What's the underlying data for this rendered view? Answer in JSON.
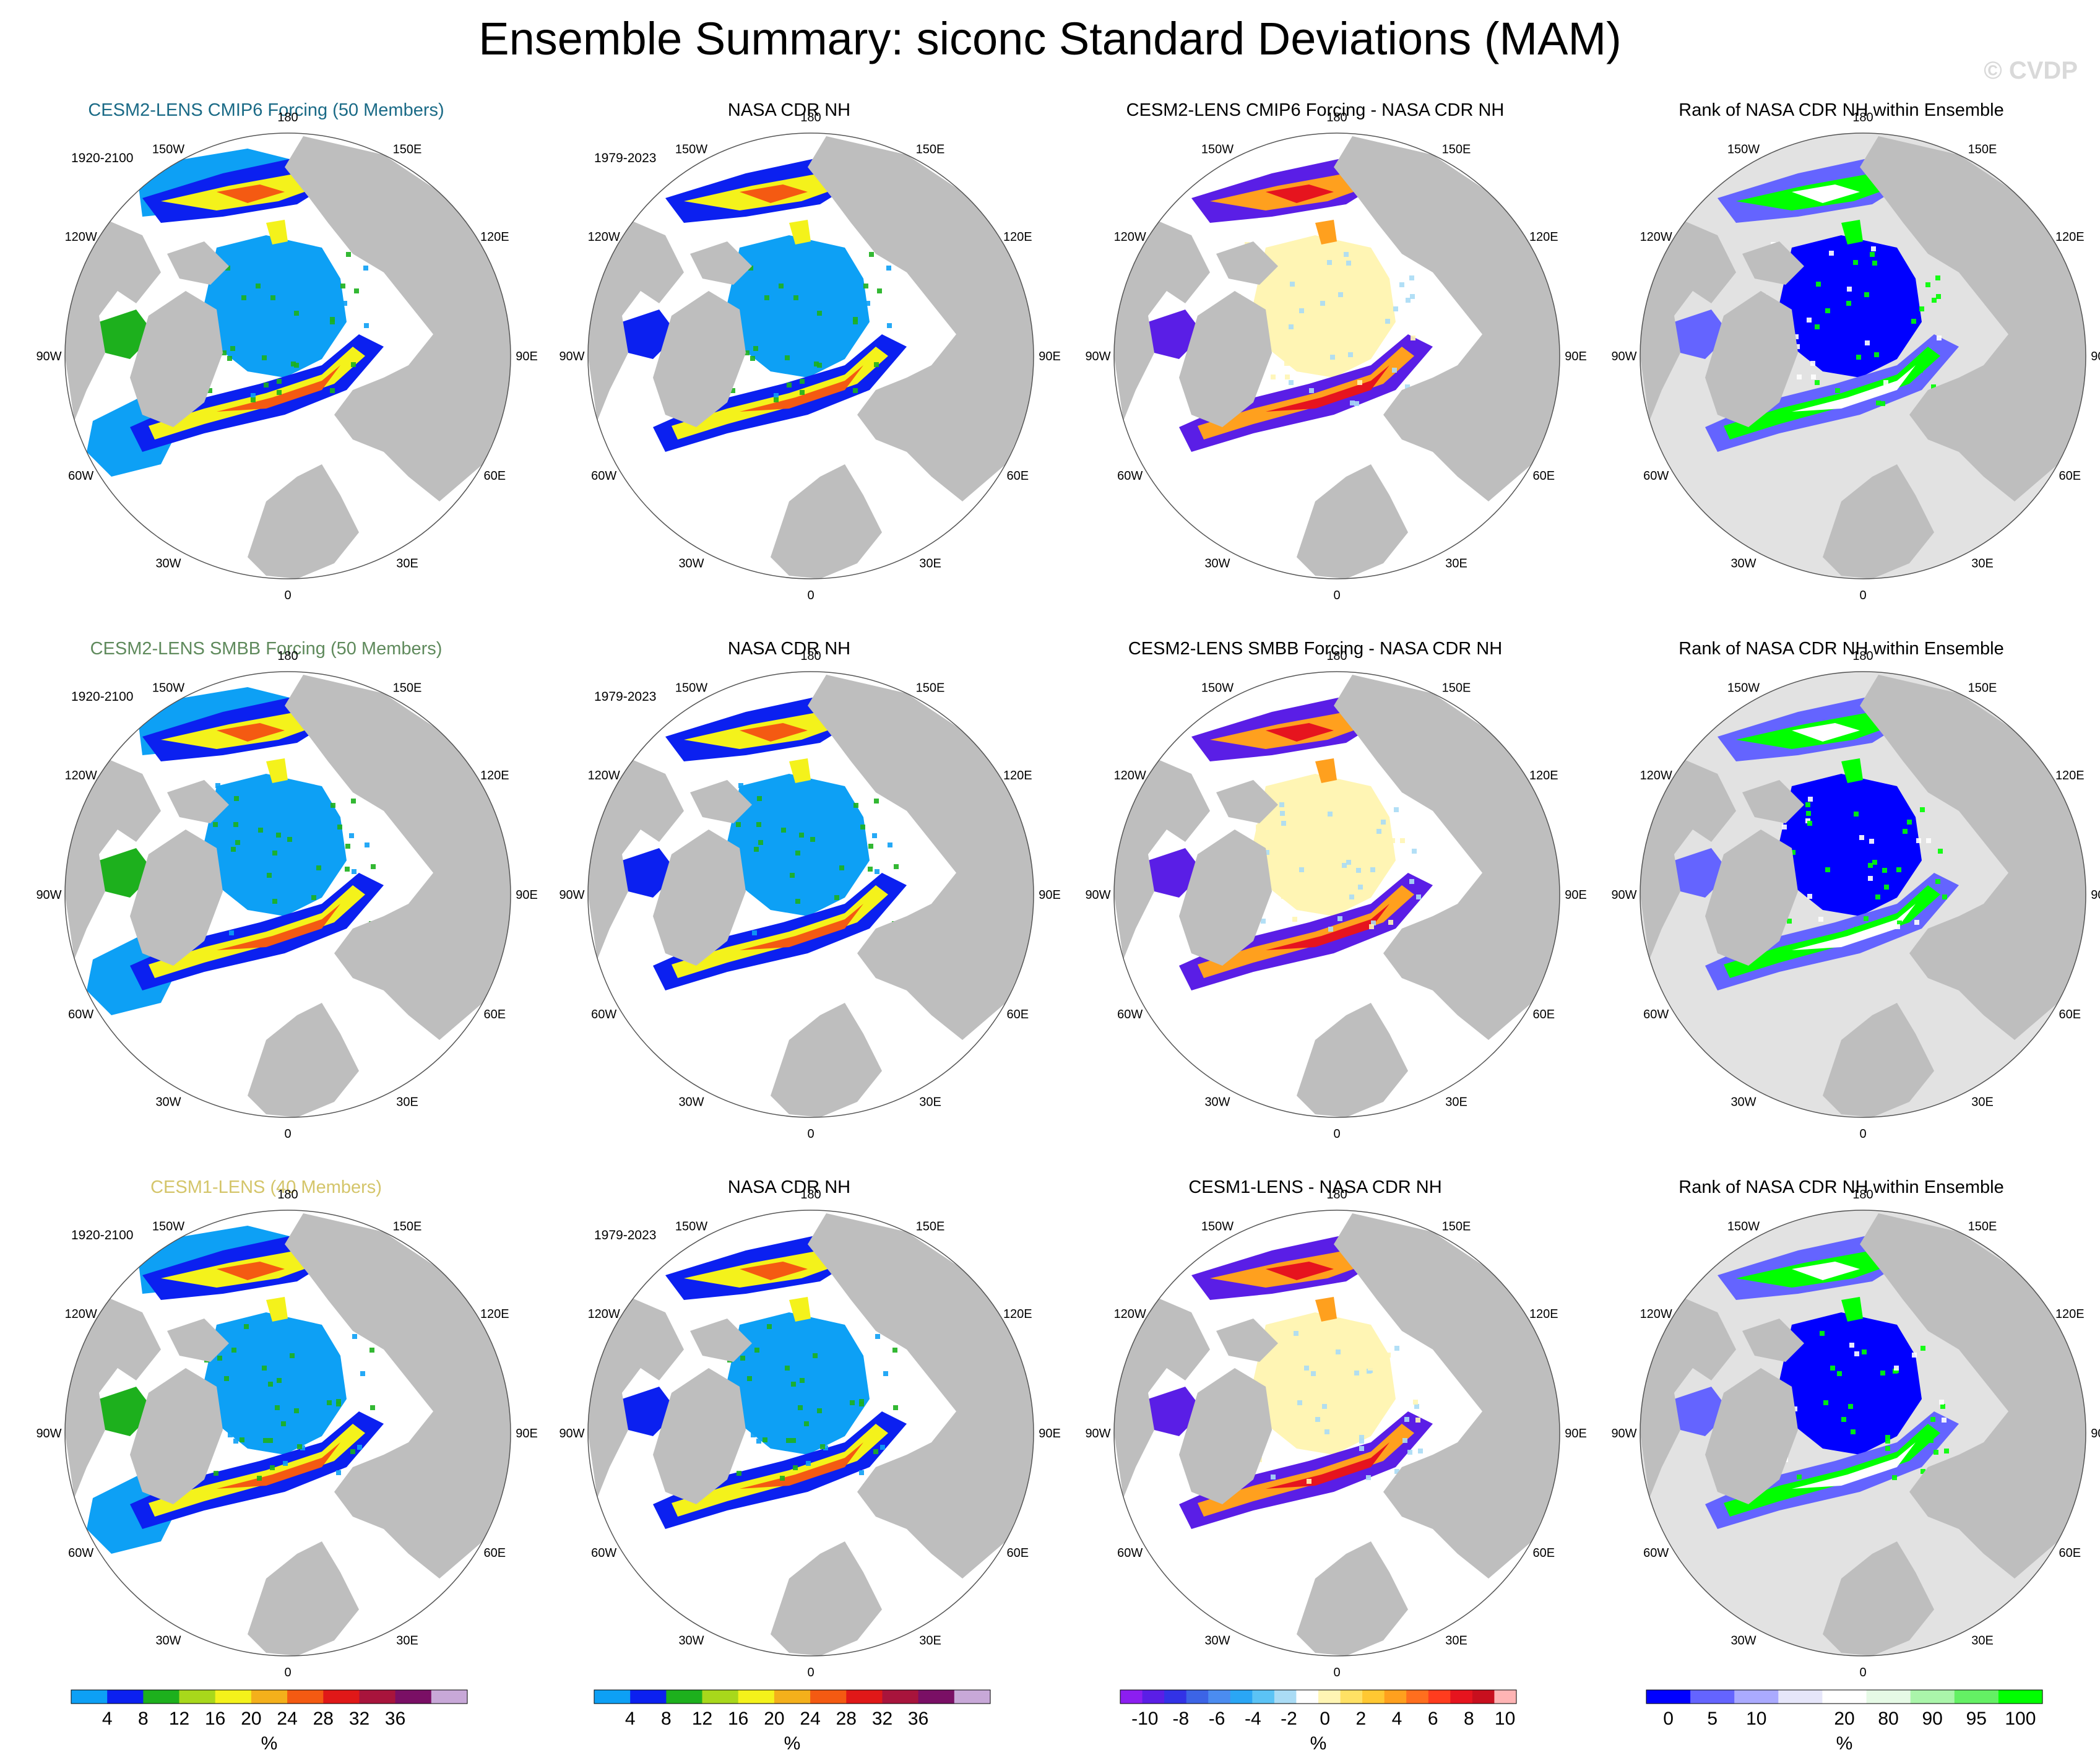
{
  "title": "Ensemble Summary: siconc Standard Deviations (MAM)",
  "watermark": "© CVDP",
  "lon_labels": [
    "180",
    "150E",
    "120E",
    "90E",
    "60E",
    "30E",
    "0",
    "30W",
    "60W",
    "90W",
    "120W",
    "150W"
  ],
  "colors": {
    "land": "#bebebe",
    "ocean_bg": "#ffffff",
    "ice_low": "#0da0f5",
    "rank_bg": "#e2e2e2"
  },
  "rows": [
    {
      "ensemble_title": "CESM2-LENS CMIP6 Forcing (50 Members)",
      "ensemble_title_color": "#1a6a86",
      "ensemble_years": "1920-2100",
      "obs_title": "NASA CDR NH",
      "obs_years": "1979-2023",
      "diff_title": "CESM2-LENS CMIP6 Forcing - NASA CDR NH",
      "rank_title": "Rank of NASA CDR NH within Ensemble"
    },
    {
      "ensemble_title": "CESM2-LENS SMBB Forcing (50 Members)",
      "ensemble_title_color": "#5f8a5c",
      "ensemble_years": "1920-2100",
      "obs_title": "NASA CDR NH",
      "obs_years": "1979-2023",
      "diff_title": "CESM2-LENS SMBB Forcing - NASA CDR NH",
      "rank_title": "Rank of NASA CDR NH within Ensemble"
    },
    {
      "ensemble_title": "CESM1-LENS (40 Members)",
      "ensemble_title_color": "#d4c56a",
      "ensemble_years": "1920-2100",
      "obs_title": "NASA CDR NH",
      "obs_years": "1979-2023",
      "diff_title": "CESM1-LENS - NASA CDR NH",
      "rank_title": "Rank of NASA CDR NH within Ensemble"
    }
  ],
  "chart_data": {
    "type": "heatmap",
    "projection": "north polar stereographic",
    "variable": "siconc standard deviation (MAM)",
    "colorbars": [
      {
        "name": "std",
        "units": "%",
        "ticks": [
          "4",
          "8",
          "12",
          "16",
          "20",
          "24",
          "28",
          "32",
          "36"
        ],
        "colors": [
          "#0da0f5",
          "#0b20f0",
          "#1db01d",
          "#a8d81b",
          "#f4f21b",
          "#f4b01b",
          "#f45a12",
          "#e01818",
          "#a8143c",
          "#7a0f65",
          "#c8a8d8"
        ]
      },
      {
        "name": "std",
        "units": "%",
        "ticks": [
          "4",
          "8",
          "12",
          "16",
          "20",
          "24",
          "28",
          "32",
          "36"
        ],
        "colors": [
          "#0da0f5",
          "#0b20f0",
          "#1db01d",
          "#a8d81b",
          "#f4f21b",
          "#f4b01b",
          "#f45a12",
          "#e01818",
          "#a8143c",
          "#7a0f65",
          "#c8a8d8"
        ]
      },
      {
        "name": "difference",
        "units": "%",
        "ticks": [
          "-10",
          "-8",
          "-6",
          "-4",
          "-2",
          "0",
          "2",
          "4",
          "6",
          "8",
          "10"
        ],
        "colors": [
          "#8c1ef0",
          "#5a1ee6",
          "#3232e6",
          "#3c64e6",
          "#4b8cf0",
          "#2aa6f5",
          "#5bc3f5",
          "#aadcf5",
          "#ffffff",
          "#fff5b4",
          "#ffe164",
          "#ffc832",
          "#ffa01e",
          "#ff6e1e",
          "#ff3c1e",
          "#e6141e",
          "#c80f1e",
          "#ffb4b4"
        ]
      },
      {
        "name": "rank",
        "units": "%",
        "ticks": [
          "0",
          "5",
          "10",
          "20",
          "80",
          "90",
          "95",
          "100"
        ],
        "colors": [
          "#0000ff",
          "#6464ff",
          "#aaaaff",
          "#e6e6fa",
          "#ffffff",
          "#e6fae6",
          "#aaf5aa",
          "#64f064",
          "#00ff00"
        ]
      }
    ]
  }
}
